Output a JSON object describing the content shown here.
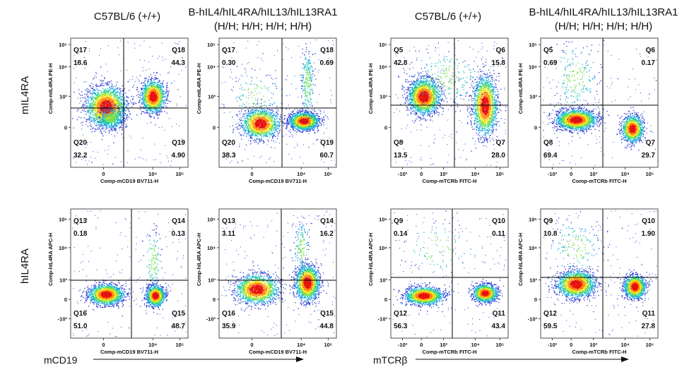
{
  "headers": [
    {
      "text": "C57BL/6 (+/+)"
    },
    {
      "text": "B-hIL4/hIL4RA/hIL13/hIL13RA1"
    },
    {
      "text": "C57BL/6 (+/+)"
    },
    {
      "text": "B-hIL4/hIL4RA/hIL13/hIL13RA1"
    }
  ],
  "header_sub": [
    "(H/H; H/H; H/H; H/H)",
    "(H/H; H/H; H/H; H/H)"
  ],
  "row_labels": [
    "mIL4RA",
    "hIL4RA"
  ],
  "bottom_labels": [
    "mCD19",
    "mTCRβ"
  ],
  "colors": {
    "dense": "#e01010",
    "mid": "#f0e020",
    "low": "#20c0a0",
    "sparse": "#2030d0",
    "gate": "#000000"
  },
  "chart_data": [
    {
      "type": "scatter",
      "subtype": "flow-cytometry-density",
      "xlabel": "Comp-mCD19 BV711-H",
      "ylabel": "Comp-mIL4RA PE-H",
      "x_ticks": [
        "0",
        "10⁴",
        "10⁵"
      ],
      "y_ticks": [
        "0",
        "10³",
        "10⁴",
        "10⁵"
      ],
      "quadrants": [
        {
          "name": "Q17",
          "value": "18.6",
          "pos": "top-left"
        },
        {
          "name": "Q18",
          "value": "44.3",
          "pos": "top-right"
        },
        {
          "name": "Q20",
          "value": "32.2",
          "pos": "bottom-left"
        },
        {
          "name": "Q19",
          "value": "4.90",
          "pos": "bottom-right"
        }
      ]
    },
    {
      "type": "scatter",
      "subtype": "flow-cytometry-density",
      "xlabel": "Comp-mCD19 BV711-H",
      "ylabel": "Comp-mIL4RA PE-H",
      "x_ticks": [
        "0",
        "10⁴",
        "10⁵"
      ],
      "y_ticks": [
        "0",
        "10³",
        "10⁴",
        "10⁵"
      ],
      "quadrants": [
        {
          "name": "Q17",
          "value": "0.30",
          "pos": "top-left"
        },
        {
          "name": "Q18",
          "value": "0.69",
          "pos": "top-right"
        },
        {
          "name": "Q20",
          "value": "38.3",
          "pos": "bottom-left"
        },
        {
          "name": "Q19",
          "value": "60.7",
          "pos": "bottom-right"
        }
      ]
    },
    {
      "type": "scatter",
      "subtype": "flow-cytometry-density",
      "xlabel": "Comp-mTCRb FITC-H",
      "ylabel": "Comp-mIL4RA PE-H",
      "x_ticks": [
        "-10³",
        "0",
        "10³",
        "10⁴",
        "10⁵"
      ],
      "y_ticks": [
        "0",
        "10³",
        "10⁴",
        "10⁵"
      ],
      "quadrants": [
        {
          "name": "Q5",
          "value": "42.8",
          "pos": "top-left"
        },
        {
          "name": "Q6",
          "value": "15.8",
          "pos": "top-right"
        },
        {
          "name": "Q8",
          "value": "13.5",
          "pos": "bottom-left"
        },
        {
          "name": "Q7",
          "value": "28.0",
          "pos": "bottom-right"
        }
      ]
    },
    {
      "type": "scatter",
      "subtype": "flow-cytometry-density",
      "xlabel": "Comp-mTCRb FITC-H",
      "ylabel": "Comp-mIL4RA PE-H",
      "x_ticks": [
        "-10³",
        "0",
        "10³",
        "10⁴",
        "10⁵"
      ],
      "y_ticks": [
        "0",
        "10³",
        "10⁴",
        "10⁵"
      ],
      "quadrants": [
        {
          "name": "Q5",
          "value": "0.69",
          "pos": "top-left"
        },
        {
          "name": "Q6",
          "value": "0.17",
          "pos": "top-right"
        },
        {
          "name": "Q8",
          "value": "69.4",
          "pos": "bottom-left"
        },
        {
          "name": "Q7",
          "value": "29.7",
          "pos": "bottom-right"
        }
      ]
    },
    {
      "type": "scatter",
      "subtype": "flow-cytometry-density",
      "xlabel": "Comp-mCD19 BV711-H",
      "ylabel": "Comp-hIL4RA APC-H",
      "x_ticks": [
        "0",
        "10⁴",
        "10⁵"
      ],
      "y_ticks": [
        "-10³",
        "0",
        "10³",
        "10⁴",
        "10⁵"
      ],
      "quadrants": [
        {
          "name": "Q13",
          "value": "0.18",
          "pos": "top-left"
        },
        {
          "name": "Q14",
          "value": "0.13",
          "pos": "top-right"
        },
        {
          "name": "Q16",
          "value": "51.0",
          "pos": "bottom-left"
        },
        {
          "name": "Q15",
          "value": "48.7",
          "pos": "bottom-right"
        }
      ]
    },
    {
      "type": "scatter",
      "subtype": "flow-cytometry-density",
      "xlabel": "Comp-mCD19 BV711-H",
      "ylabel": "Comp-hIL4RA APC-H",
      "x_ticks": [
        "0",
        "10⁴",
        "10⁵"
      ],
      "y_ticks": [
        "-10³",
        "0",
        "10³",
        "10⁴",
        "10⁵"
      ],
      "quadrants": [
        {
          "name": "Q13",
          "value": "3.11",
          "pos": "top-left"
        },
        {
          "name": "Q14",
          "value": "16.2",
          "pos": "top-right"
        },
        {
          "name": "Q16",
          "value": "35.9",
          "pos": "bottom-left"
        },
        {
          "name": "Q15",
          "value": "44.8",
          "pos": "bottom-right"
        }
      ]
    },
    {
      "type": "scatter",
      "subtype": "flow-cytometry-density",
      "xlabel": "Comp-mTCRb FITC-H",
      "ylabel": "Comp-hIL4RA APC-H",
      "x_ticks": [
        "-10³",
        "0",
        "10³",
        "10⁴",
        "10⁵"
      ],
      "y_ticks": [
        "-10³",
        "0",
        "10³",
        "10⁴",
        "10⁵"
      ],
      "quadrants": [
        {
          "name": "Q9",
          "value": "0.14",
          "pos": "top-left"
        },
        {
          "name": "Q10",
          "value": "0.11",
          "pos": "top-right"
        },
        {
          "name": "Q12",
          "value": "56.3",
          "pos": "bottom-left"
        },
        {
          "name": "Q11",
          "value": "43.4",
          "pos": "bottom-right"
        }
      ]
    },
    {
      "type": "scatter",
      "subtype": "flow-cytometry-density",
      "xlabel": "Comp-mTCRb FITC-H",
      "ylabel": "Comp-hIL4RA APC-H",
      "x_ticks": [
        "-10³",
        "0",
        "10³",
        "10⁴",
        "10⁵"
      ],
      "y_ticks": [
        "-10³",
        "0",
        "10³",
        "10⁴",
        "10⁵"
      ],
      "quadrants": [
        {
          "name": "Q9",
          "value": "10.8",
          "pos": "top-left"
        },
        {
          "name": "Q10",
          "value": "1.90",
          "pos": "top-right"
        },
        {
          "name": "Q12",
          "value": "59.5",
          "pos": "bottom-left"
        },
        {
          "name": "Q11",
          "value": "27.8",
          "pos": "bottom-right"
        }
      ]
    }
  ]
}
